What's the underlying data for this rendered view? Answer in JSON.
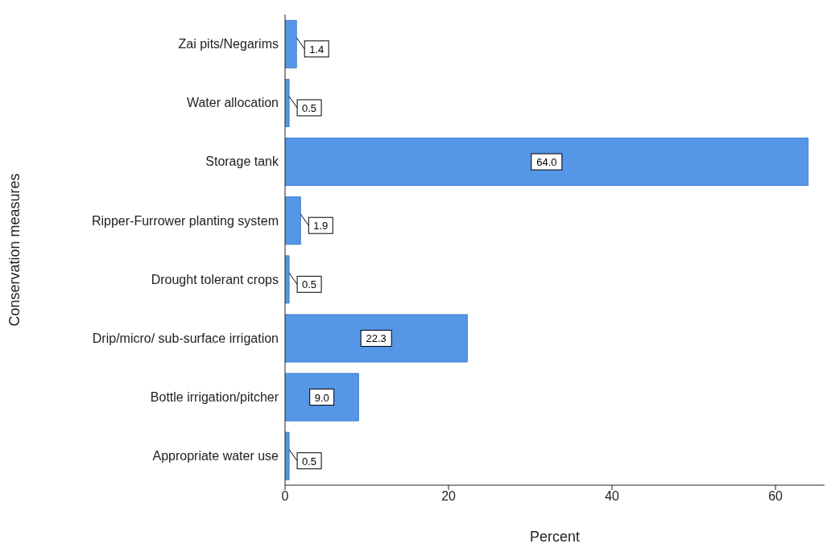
{
  "chart_data": {
    "type": "bar",
    "orientation": "horizontal",
    "xlabel": "Percent",
    "ylabel": "Conservation measures",
    "categories": [
      "Zai pits/Negarims",
      "Water allocation",
      "Storage tank",
      "Ripper-Furrower planting system",
      "Drought tolerant crops",
      "Drip/micro/ sub-surface irrigation",
      "Bottle irrigation/pitcher",
      "Appropriate water use"
    ],
    "values": [
      1.4,
      0.5,
      64.0,
      1.9,
      0.5,
      22.3,
      9.0,
      0.5
    ],
    "value_labels": [
      "1.4",
      "0.5",
      "64.0",
      "1.9",
      "0.5",
      "22.3",
      "9.0",
      "0.5"
    ],
    "color": "#5596e6",
    "xlim": [
      0,
      66
    ],
    "xticks": [
      0,
      20,
      40,
      60
    ],
    "grid": false,
    "legend": false
  }
}
